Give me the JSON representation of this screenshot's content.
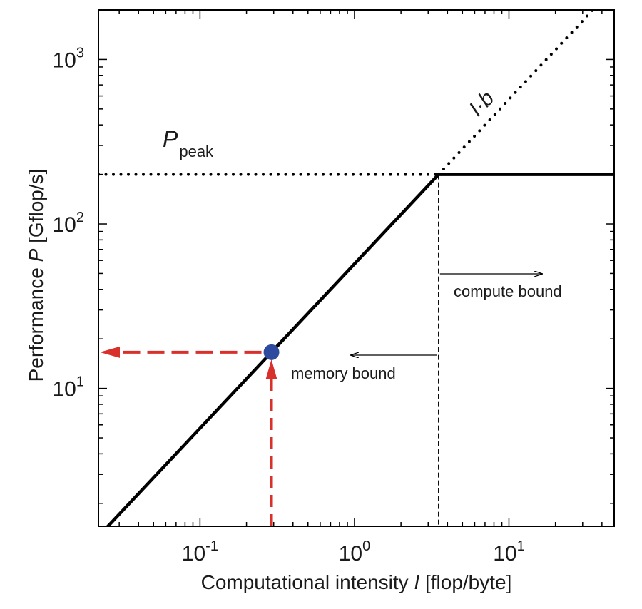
{
  "chart_data": {
    "type": "line",
    "scale": {
      "x": "log",
      "y": "log"
    },
    "xlim": [
      0.022,
      48
    ],
    "ylim": [
      1.45,
      2000
    ],
    "x_ticks": [
      {
        "base": "10",
        "exp": "-1",
        "value": 0.1
      },
      {
        "base": "10",
        "exp": "0",
        "value": 1
      },
      {
        "base": "10",
        "exp": "1",
        "value": 10
      }
    ],
    "y_ticks": [
      {
        "base": "10",
        "exp": "1",
        "value": 10
      },
      {
        "base": "10",
        "exp": "2",
        "value": 100
      },
      {
        "base": "10",
        "exp": "3",
        "value": 1000
      }
    ],
    "xlabel": {
      "prefix": "Computational intensity ",
      "var": "I",
      "suffix": " [flop/byte]"
    },
    "ylabel": {
      "prefix": "Performance ",
      "var": "P",
      "suffix": " [Gflop/s]"
    },
    "peak_performance": 200,
    "ridge_point_intensity": 3.5,
    "series": [
      {
        "style": "solid",
        "color": "#000000",
        "x": [
          0.022,
          3.5,
          48
        ],
        "y": [
          1.26,
          200,
          200
        ]
      },
      {
        "style": "dotted",
        "color": "#000000",
        "x": [
          3.5,
          36
        ],
        "y": [
          200,
          2060
        ]
      },
      {
        "style": "dotted",
        "color": "#000000",
        "x": [
          0.022,
          3.5
        ],
        "y": [
          200,
          200
        ]
      }
    ],
    "operating_point": {
      "x": 0.29,
      "y": 16.6,
      "color": "#2d4a9e"
    },
    "projection_color": "#d9302c",
    "annotations": {
      "peak": {
        "main": "P",
        "sub": "peak"
      },
      "bandwidth": {
        "text": "I·b"
      },
      "compute_bound": "compute bound",
      "memory_bound": "memory bound"
    }
  }
}
